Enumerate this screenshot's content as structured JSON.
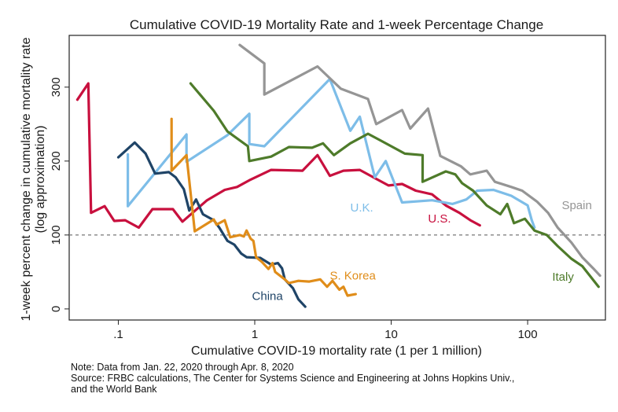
{
  "chart_data": {
    "type": "line",
    "title": "Cumulative COVID-19 Mortality Rate and 1-week Percentage Change",
    "xlabel": "Cumulative COVID-19 mortality rate (1 per 1 million)",
    "ylabel": "1-week percent change in cumulative mortality rate",
    "ylabel_sub": "(log approximation)",
    "x_scale": "log",
    "xlim_log10": [
      -1.36,
      2.57
    ],
    "ylim": [
      -15,
      370
    ],
    "x_ticks": [
      {
        "value": 0.1,
        "label": ".1"
      },
      {
        "value": 1,
        "label": "1"
      },
      {
        "value": 10,
        "label": "10"
      },
      {
        "value": 100,
        "label": "100"
      }
    ],
    "y_ticks": [
      {
        "value": 0,
        "label": "0"
      },
      {
        "value": 100,
        "label": "100"
      },
      {
        "value": 200,
        "label": "200"
      },
      {
        "value": 300,
        "label": "300"
      }
    ],
    "reference_line": {
      "y": 100,
      "style": "dashed",
      "color": "#777777"
    },
    "grid": false,
    "legend": "direct labels",
    "series": [
      {
        "name": "U.S.",
        "label": "U.S.",
        "color": "#c8103e",
        "label_pos": {
          "log10x": 1.27,
          "y": 117
        },
        "points": [
          [
            -1.3,
            283
          ],
          [
            -1.22,
            305
          ],
          [
            -1.2,
            130
          ],
          [
            -1.1,
            139
          ],
          [
            -1.03,
            119
          ],
          [
            -0.95,
            120
          ],
          [
            -0.85,
            110
          ],
          [
            -0.75,
            135
          ],
          [
            -0.6,
            135
          ],
          [
            -0.53,
            118
          ],
          [
            -0.35,
            147
          ],
          [
            -0.22,
            161
          ],
          [
            -0.13,
            165
          ],
          [
            -0.03,
            175
          ],
          [
            0.12,
            188
          ],
          [
            0.35,
            187
          ],
          [
            0.46,
            208
          ],
          [
            0.55,
            180
          ],
          [
            0.65,
            187
          ],
          [
            0.77,
            188
          ],
          [
            0.88,
            177
          ],
          [
            0.98,
            167
          ],
          [
            1.08,
            169
          ],
          [
            1.18,
            160
          ],
          [
            1.3,
            155
          ],
          [
            1.4,
            140
          ],
          [
            1.5,
            130
          ],
          [
            1.58,
            120
          ],
          [
            1.65,
            113
          ]
        ]
      },
      {
        "name": "U.K.",
        "label": "U.K.",
        "color": "#7dbde8",
        "label_pos": {
          "log10x": 0.7,
          "y": 132
        },
        "points": [
          [
            -0.93,
            209
          ],
          [
            -0.93,
            139
          ],
          [
            -0.5,
            236
          ],
          [
            -0.5,
            199
          ],
          [
            -0.2,
            235
          ],
          [
            -0.04,
            264
          ],
          [
            -0.04,
            223
          ],
          [
            0.07,
            220
          ],
          [
            0.55,
            311
          ],
          [
            0.7,
            241
          ],
          [
            0.77,
            260
          ],
          [
            0.88,
            178
          ],
          [
            0.96,
            200
          ],
          [
            1.08,
            144
          ],
          [
            1.3,
            147
          ],
          [
            1.45,
            142
          ],
          [
            1.55,
            148
          ],
          [
            1.63,
            160
          ],
          [
            1.75,
            161
          ],
          [
            1.88,
            153
          ],
          [
            2.0,
            140
          ],
          [
            2.03,
            120
          ],
          [
            2.05,
            110
          ]
        ]
      },
      {
        "name": "Italy",
        "label": "Italy",
        "color": "#4e7b2a",
        "label_pos": {
          "log10x": 2.18,
          "y": 38
        },
        "points": [
          [
            -0.47,
            305
          ],
          [
            -0.3,
            268
          ],
          [
            -0.2,
            240
          ],
          [
            -0.05,
            220
          ],
          [
            -0.04,
            200
          ],
          [
            0.12,
            206
          ],
          [
            0.25,
            219
          ],
          [
            0.42,
            218
          ],
          [
            0.5,
            224
          ],
          [
            0.58,
            208
          ],
          [
            0.7,
            224
          ],
          [
            0.83,
            237
          ],
          [
            0.92,
            228
          ],
          [
            1.1,
            210
          ],
          [
            1.23,
            208
          ],
          [
            1.23,
            172
          ],
          [
            1.4,
            186
          ],
          [
            1.47,
            182
          ],
          [
            1.52,
            170
          ],
          [
            1.6,
            160
          ],
          [
            1.7,
            140
          ],
          [
            1.8,
            128
          ],
          [
            1.85,
            142
          ],
          [
            1.9,
            116
          ],
          [
            1.98,
            122
          ],
          [
            2.05,
            106
          ],
          [
            2.14,
            100
          ],
          [
            2.22,
            85
          ],
          [
            2.32,
            68
          ],
          [
            2.4,
            58
          ],
          [
            2.52,
            30
          ]
        ]
      },
      {
        "name": "Spain",
        "label": "Spain",
        "color": "#959595",
        "label_pos": {
          "log10x": 2.25,
          "y": 135
        },
        "points": [
          [
            -0.11,
            357
          ],
          [
            0.07,
            332
          ],
          [
            0.07,
            290
          ],
          [
            0.46,
            328
          ],
          [
            0.63,
            298
          ],
          [
            0.83,
            284
          ],
          [
            0.89,
            250
          ],
          [
            1.08,
            269
          ],
          [
            1.14,
            244
          ],
          [
            1.27,
            271
          ],
          [
            1.36,
            207
          ],
          [
            1.51,
            193
          ],
          [
            1.58,
            182
          ],
          [
            1.7,
            187
          ],
          [
            1.76,
            172
          ],
          [
            1.88,
            165
          ],
          [
            1.96,
            160
          ],
          [
            2.07,
            145
          ],
          [
            2.15,
            130
          ],
          [
            2.22,
            110
          ],
          [
            2.32,
            90
          ],
          [
            2.4,
            70
          ],
          [
            2.48,
            55
          ],
          [
            2.53,
            45
          ]
        ]
      },
      {
        "name": "China",
        "label": "China",
        "color": "#1f4467",
        "label_pos": {
          "log10x": -0.02,
          "y": 12
        },
        "points": [
          [
            -1.0,
            205
          ],
          [
            -0.88,
            225
          ],
          [
            -0.8,
            210
          ],
          [
            -0.73,
            183
          ],
          [
            -0.63,
            185
          ],
          [
            -0.58,
            178
          ],
          [
            -0.52,
            162
          ],
          [
            -0.48,
            133
          ],
          [
            -0.43,
            148
          ],
          [
            -0.38,
            128
          ],
          [
            -0.3,
            120
          ],
          [
            -0.26,
            110
          ],
          [
            -0.2,
            92
          ],
          [
            -0.15,
            87
          ],
          [
            -0.1,
            75
          ],
          [
            -0.06,
            70
          ],
          [
            0.04,
            69
          ],
          [
            0.12,
            60
          ],
          [
            0.17,
            62
          ],
          [
            0.2,
            55
          ],
          [
            0.22,
            40
          ],
          [
            0.28,
            28
          ],
          [
            0.32,
            13
          ],
          [
            0.37,
            3
          ]
        ]
      },
      {
        "name": "S. Korea",
        "label": "S. Korea",
        "color": "#e08d1a",
        "label_pos": {
          "log10x": 0.55,
          "y": 40
        },
        "points": [
          [
            -0.61,
            257
          ],
          [
            -0.61,
            187
          ],
          [
            -0.5,
            208
          ],
          [
            -0.44,
            105
          ],
          [
            -0.3,
            121
          ],
          [
            -0.28,
            114
          ],
          [
            -0.22,
            120
          ],
          [
            -0.18,
            97
          ],
          [
            -0.11,
            100
          ],
          [
            -0.08,
            98
          ],
          [
            -0.06,
            106
          ],
          [
            -0.03,
            95
          ],
          [
            -0.01,
            92
          ],
          [
            0.01,
            70
          ],
          [
            0.05,
            64
          ],
          [
            0.1,
            54
          ],
          [
            0.13,
            62
          ],
          [
            0.15,
            50
          ],
          [
            0.22,
            40
          ],
          [
            0.25,
            35
          ],
          [
            0.32,
            38
          ],
          [
            0.4,
            37
          ],
          [
            0.48,
            40
          ],
          [
            0.53,
            30
          ],
          [
            0.57,
            38
          ],
          [
            0.62,
            26
          ],
          [
            0.65,
            30
          ],
          [
            0.68,
            18
          ],
          [
            0.74,
            20
          ]
        ]
      }
    ]
  },
  "notes": {
    "line1": "Note: Data from Jan. 22, 2020 through Apr. 8, 2020",
    "line2": "Source: FRBC calculations, The Center for Systems Science and Engineering at Johns Hopkins Univ.,",
    "line3": "and the World Bank"
  }
}
